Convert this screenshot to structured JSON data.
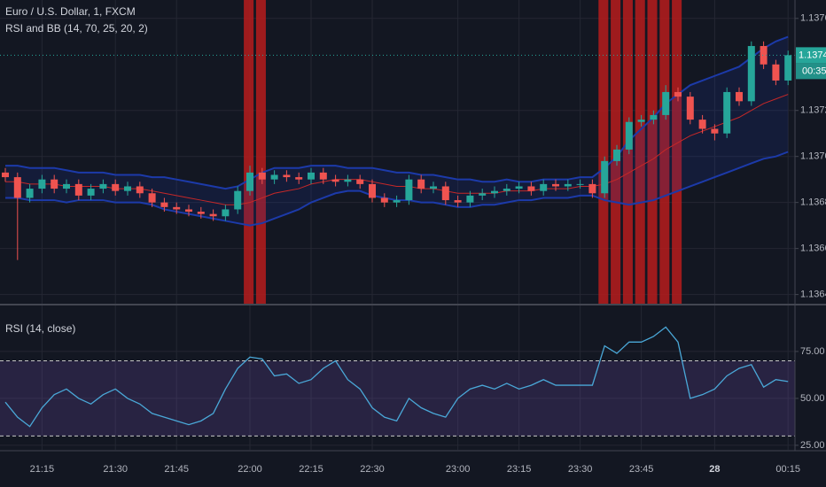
{
  "chart_data": [
    {
      "type": "candlestick",
      "title": "Euro / U.S. Dollar, 1, FXCM",
      "subtitle": "RSI and BB (14, 70, 25, 20, 2)",
      "countdown": "00:35",
      "categories": [
        null,
        null,
        null,
        "21:15",
        null,
        null,
        null,
        null,
        null,
        "21:30",
        null,
        null,
        null,
        null,
        "21:45",
        null,
        null,
        null,
        null,
        null,
        "22:00",
        null,
        null,
        null,
        null,
        "22:15",
        null,
        null,
        null,
        null,
        "22:30",
        null,
        null,
        null,
        null,
        null,
        null,
        "23:00",
        null,
        null,
        null,
        null,
        "23:15",
        null,
        null,
        null,
        null,
        "23:30",
        null,
        null,
        null,
        null,
        "23:45",
        null,
        null,
        null,
        null,
        null,
        "28",
        null,
        null,
        null,
        null,
        null,
        "00:15"
      ],
      "open": [
        1.13693,
        1.13691,
        1.13682,
        1.13686,
        1.1369,
        1.13686,
        1.13688,
        1.13683,
        1.13686,
        1.13688,
        1.13685,
        1.13687,
        1.13684,
        1.1368,
        1.13678,
        1.13677,
        1.13676,
        1.13675,
        1.13674,
        1.13677,
        1.13685,
        1.13693,
        1.1369,
        1.13692,
        1.13691,
        1.1369,
        1.13693,
        1.1369,
        1.13689,
        1.1369,
        1.13688,
        1.13682,
        1.1368,
        1.13681,
        1.1369,
        1.13686,
        1.13687,
        1.13681,
        1.1368,
        1.13683,
        1.13684,
        1.13685,
        1.13686,
        1.13687,
        1.13685,
        1.13688,
        1.13687,
        1.13688,
        1.13688,
        1.13684,
        1.13698,
        1.13703,
        1.13715,
        1.13716,
        1.13718,
        1.13728,
        1.13726,
        1.13716,
        1.13712,
        1.1371,
        1.13728,
        1.13724,
        1.13748,
        1.1374,
        1.13733
      ],
      "high": [
        1.13695,
        1.13693,
        1.13688,
        1.13692,
        1.13692,
        1.1369,
        1.1369,
        1.13688,
        1.1369,
        1.1369,
        1.13689,
        1.13689,
        1.13686,
        1.13682,
        1.1368,
        1.13679,
        1.13678,
        1.13677,
        1.13679,
        1.13687,
        1.13696,
        1.13695,
        1.13694,
        1.13694,
        1.13693,
        1.13695,
        1.13695,
        1.13692,
        1.13692,
        1.13692,
        1.1369,
        1.13684,
        1.13683,
        1.13692,
        1.13692,
        1.13689,
        1.13689,
        1.13683,
        1.13685,
        1.13686,
        1.13687,
        1.13688,
        1.13689,
        1.13689,
        1.1369,
        1.1369,
        1.1369,
        1.1369,
        1.1369,
        1.137,
        1.13705,
        1.13717,
        1.13718,
        1.1372,
        1.13731,
        1.1373,
        1.13728,
        1.13718,
        1.13714,
        1.1373,
        1.1373,
        1.1375,
        1.1375,
        1.13742,
        1.13746
      ],
      "low": [
        1.13689,
        1.13655,
        1.1368,
        1.13684,
        1.13684,
        1.13684,
        1.13681,
        1.13681,
        1.13684,
        1.13683,
        1.13683,
        1.13682,
        1.13678,
        1.13676,
        1.13675,
        1.13674,
        1.13673,
        1.13672,
        1.13672,
        1.13675,
        1.13683,
        1.13688,
        1.13688,
        1.13689,
        1.13688,
        1.13688,
        1.13688,
        1.13687,
        1.13687,
        1.13686,
        1.1368,
        1.13678,
        1.13678,
        1.13679,
        1.13684,
        1.13684,
        1.13679,
        1.13678,
        1.13678,
        1.13681,
        1.13682,
        1.13683,
        1.13684,
        1.13683,
        1.13683,
        1.13685,
        1.13685,
        1.13686,
        1.13682,
        1.13682,
        1.13696,
        1.13701,
        1.13713,
        1.13714,
        1.13716,
        1.13724,
        1.13714,
        1.1371,
        1.13707,
        1.13708,
        1.13722,
        1.13722,
        1.13738,
        1.13731,
        1.13731
      ],
      "close": [
        1.13691,
        1.13682,
        1.13686,
        1.1369,
        1.13686,
        1.13688,
        1.13683,
        1.13686,
        1.13688,
        1.13685,
        1.13687,
        1.13684,
        1.1368,
        1.13678,
        1.13677,
        1.13676,
        1.13675,
        1.13674,
        1.13677,
        1.13685,
        1.13693,
        1.1369,
        1.13692,
        1.13691,
        1.1369,
        1.13693,
        1.1369,
        1.13689,
        1.1369,
        1.13688,
        1.13682,
        1.1368,
        1.13681,
        1.1369,
        1.13686,
        1.13687,
        1.13681,
        1.1368,
        1.13683,
        1.13684,
        1.13685,
        1.13686,
        1.13687,
        1.13685,
        1.13688,
        1.13687,
        1.13688,
        1.13688,
        1.13684,
        1.13698,
        1.13703,
        1.13715,
        1.13716,
        1.13718,
        1.13728,
        1.13726,
        1.13716,
        1.13712,
        1.1371,
        1.13728,
        1.13724,
        1.13748,
        1.1374,
        1.13733,
        1.13744
      ],
      "bb_upper": [
        1.13696,
        1.13696,
        1.13695,
        1.13695,
        1.13695,
        1.13694,
        1.13693,
        1.13693,
        1.13693,
        1.13692,
        1.13692,
        1.13692,
        1.13691,
        1.13691,
        1.1369,
        1.13689,
        1.13688,
        1.13687,
        1.13686,
        1.13687,
        1.1369,
        1.13693,
        1.13695,
        1.13695,
        1.13695,
        1.13696,
        1.13696,
        1.13696,
        1.13695,
        1.13695,
        1.13695,
        1.13694,
        1.13693,
        1.13693,
        1.13692,
        1.13692,
        1.13691,
        1.1369,
        1.1369,
        1.13689,
        1.13689,
        1.1369,
        1.13689,
        1.13689,
        1.1369,
        1.1369,
        1.1369,
        1.13691,
        1.13691,
        1.13695,
        1.137,
        1.13707,
        1.13712,
        1.13717,
        1.13723,
        1.13727,
        1.13731,
        1.13733,
        1.13735,
        1.13737,
        1.13739,
        1.13743,
        1.13747,
        1.1375,
        1.13752
      ],
      "bb_basis": [
        1.13689,
        1.13689,
        1.13688,
        1.13688,
        1.13688,
        1.13687,
        1.13687,
        1.13687,
        1.13687,
        1.13686,
        1.13686,
        1.13686,
        1.13685,
        1.13684,
        1.13683,
        1.13682,
        1.13681,
        1.1368,
        1.13679,
        1.13679,
        1.1368,
        1.13682,
        1.13684,
        1.13685,
        1.13686,
        1.13688,
        1.13689,
        1.1369,
        1.1369,
        1.1369,
        1.13689,
        1.13688,
        1.13687,
        1.13687,
        1.13686,
        1.13686,
        1.13685,
        1.13684,
        1.13684,
        1.13684,
        1.13684,
        1.13685,
        1.13685,
        1.13685,
        1.13686,
        1.13686,
        1.13686,
        1.13687,
        1.13687,
        1.13688,
        1.1369,
        1.13693,
        1.13696,
        1.13699,
        1.13703,
        1.13706,
        1.13709,
        1.13711,
        1.13713,
        1.13715,
        1.13717,
        1.1372,
        1.13723,
        1.13725,
        1.13727
      ],
      "bb_lower": [
        1.13682,
        1.13682,
        1.13681,
        1.13681,
        1.13681,
        1.1368,
        1.13681,
        1.13681,
        1.13681,
        1.1368,
        1.1368,
        1.1368,
        1.13679,
        1.13677,
        1.13676,
        1.13675,
        1.13674,
        1.13673,
        1.13672,
        1.13671,
        1.1367,
        1.13671,
        1.13673,
        1.13675,
        1.13677,
        1.1368,
        1.13682,
        1.13684,
        1.13685,
        1.13685,
        1.13683,
        1.13682,
        1.13681,
        1.13681,
        1.1368,
        1.1368,
        1.13679,
        1.13678,
        1.13678,
        1.13679,
        1.13679,
        1.1368,
        1.13681,
        1.13681,
        1.13682,
        1.13682,
        1.13682,
        1.13683,
        1.13683,
        1.13681,
        1.1368,
        1.13679,
        1.1368,
        1.13681,
        1.13683,
        1.13685,
        1.13687,
        1.13689,
        1.13691,
        1.13693,
        1.13695,
        1.13697,
        1.13699,
        1.137,
        1.13702
      ],
      "up_color": "#26a69a",
      "down_color": "#ef5350",
      "band_color": "#1c3aa9",
      "basis_color": "#c62828",
      "ylim": [
        1.13636,
        1.13768
      ],
      "yticks": [
        {
          "value": 1.1364,
          "label": "1.13640"
        },
        {
          "value": 1.1366,
          "label": "1.13660"
        },
        {
          "value": 1.1368,
          "label": "1.13680"
        },
        {
          "value": 1.137,
          "label": "1.13700"
        },
        {
          "value": 1.1372,
          "label": "1.13720"
        },
        {
          "value": 1.1376,
          "label": "1.13760"
        }
      ],
      "grid": true
    },
    {
      "type": "line",
      "title": "RSI (14, close)",
      "values": [
        48,
        40,
        35,
        45,
        52,
        55,
        50,
        47,
        52,
        55,
        50,
        47,
        42,
        40,
        38,
        36,
        38,
        42,
        55,
        66,
        72,
        71,
        62,
        63,
        58,
        60,
        66,
        70,
        60,
        55,
        45,
        40,
        38,
        50,
        45,
        42,
        40,
        50,
        55,
        57,
        55,
        58,
        55,
        57,
        60,
        57,
        57,
        57,
        57,
        78,
        74,
        80,
        80,
        83,
        88,
        80,
        50,
        52,
        55,
        62,
        66,
        68,
        56,
        60,
        59
      ],
      "color": "#4aa8d8",
      "levels": [
        70,
        30
      ],
      "ylim": [
        22.6,
        99.5
      ],
      "yticks": [
        {
          "value": 25,
          "label": "25.00"
        },
        {
          "value": 50,
          "label": "50.00"
        },
        {
          "value": 75,
          "label": "75.00"
        }
      ],
      "grid": true
    }
  ]
}
